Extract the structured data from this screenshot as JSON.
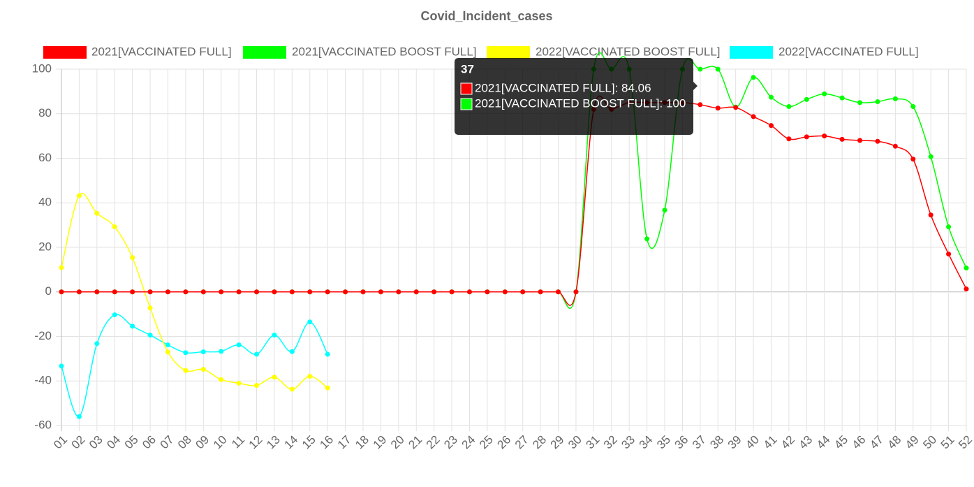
{
  "chart_data": {
    "type": "line",
    "title": "Covid_Incident_cases",
    "categories": [
      "01",
      "02",
      "03",
      "04",
      "05",
      "06",
      "07",
      "08",
      "09",
      "10",
      "11",
      "12",
      "13",
      "14",
      "15",
      "16",
      "17",
      "18",
      "19",
      "20",
      "21",
      "22",
      "23",
      "24",
      "25",
      "26",
      "27",
      "28",
      "29",
      "30",
      "31",
      "32",
      "33",
      "34",
      "35",
      "36",
      "37",
      "38",
      "39",
      "40",
      "41",
      "42",
      "43",
      "44",
      "45",
      "46",
      "47",
      "48",
      "49",
      "50",
      "51",
      "52"
    ],
    "series": [
      {
        "name": "2021[VACCINATED FULL]",
        "color": "#ff0000",
        "values": [
          0,
          0,
          0,
          0,
          0,
          0,
          0,
          0,
          0,
          0,
          0,
          0,
          0,
          0,
          0,
          0,
          0,
          0,
          0,
          0,
          0,
          0,
          0,
          0,
          0,
          0,
          0,
          0,
          0,
          0,
          82,
          82,
          85,
          85,
          85,
          85,
          84.06,
          82.5,
          82.8,
          78.7,
          74.7,
          68.7,
          69.6,
          70,
          68.5,
          68,
          67.6,
          65.4,
          59.6,
          34.5,
          17,
          1.3
        ]
      },
      {
        "name": "2021[VACCINATED BOOST FULL]",
        "color": "#00ff00",
        "values": [
          0,
          0,
          0,
          0,
          0,
          0,
          0,
          0,
          0,
          0,
          0,
          0,
          0,
          0,
          0,
          0,
          0,
          0,
          0,
          0,
          0,
          0,
          0,
          0,
          0,
          0,
          0,
          0,
          0,
          0,
          100,
          100,
          100,
          23.8,
          36.7,
          100,
          100,
          100,
          83,
          96.3,
          87.4,
          83.2,
          86.4,
          88.9,
          87.1,
          85,
          85.4,
          86.7,
          83.2,
          60.7,
          29.2,
          10.7
        ]
      },
      {
        "name": "2022[VACCINATED BOOST FULL]",
        "color": "#ffff00",
        "values": [
          10.9,
          43.2,
          35.3,
          29.2,
          15.4,
          -7.2,
          -27,
          -35.3,
          -34.8,
          -39.4,
          -41,
          -42,
          -38.3,
          -43.7,
          -37.9,
          -43.1,
          null,
          null,
          null,
          null,
          null,
          null,
          null,
          null,
          null,
          null,
          null,
          null,
          null,
          null,
          null,
          null,
          null,
          null,
          null,
          null,
          null,
          null,
          null,
          null,
          null,
          null,
          null,
          null,
          null,
          null,
          null,
          null,
          null,
          null,
          null,
          null
        ]
      },
      {
        "name": "2022[VACCINATED FULL]",
        "color": "#00ffff",
        "values": [
          -33.3,
          -56,
          -23.2,
          -10.3,
          -15.4,
          -19.4,
          -23.8,
          -27.3,
          -26.9,
          -26.7,
          -23.8,
          -28,
          -19.4,
          -26.8,
          -13.5,
          -28,
          null,
          null,
          null,
          null,
          null,
          null,
          null,
          null,
          null,
          null,
          null,
          null,
          null,
          null,
          null,
          null,
          null,
          null,
          null,
          null,
          null,
          null,
          null,
          null,
          null,
          null,
          null,
          null,
          null,
          null,
          null,
          null,
          null,
          null,
          null,
          null
        ]
      }
    ],
    "ylim": [
      -60,
      100
    ],
    "yticks": [
      -60,
      -40,
      -20,
      0,
      20,
      40,
      60,
      80,
      100
    ],
    "grid": true,
    "legend": "top",
    "tooltip": {
      "title": "37",
      "items": [
        "2021[VACCINATED FULL]: 84.06",
        "2021[VACCINATED BOOST FULL]: 100"
      ]
    }
  }
}
